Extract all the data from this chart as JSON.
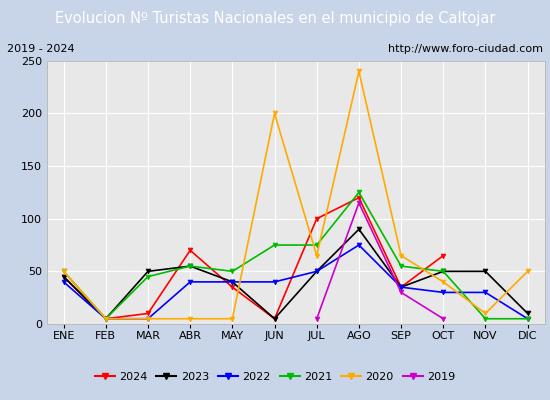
{
  "title": "Evolucion Nº Turistas Nacionales en el municipio de Caltojar",
  "subtitle_left": "2019 - 2024",
  "subtitle_right": "http://www.foro-ciudad.com",
  "months": [
    "ENE",
    "FEB",
    "MAR",
    "ABR",
    "MAY",
    "JUN",
    "JUL",
    "AGO",
    "SEP",
    "OCT",
    "NOV",
    "DIC"
  ],
  "ylim": [
    0,
    250
  ],
  "yticks": [
    0,
    50,
    100,
    150,
    200,
    250
  ],
  "series": {
    "2024": {
      "color": "#ff0000",
      "data": [
        45,
        5,
        10,
        70,
        35,
        5,
        100,
        120,
        35,
        65,
        null,
        null
      ]
    },
    "2023": {
      "color": "#000000",
      "data": [
        45,
        5,
        50,
        55,
        40,
        5,
        50,
        90,
        35,
        50,
        50,
        10
      ]
    },
    "2022": {
      "color": "#0000ff",
      "data": [
        40,
        5,
        5,
        40,
        40,
        40,
        50,
        75,
        35,
        30,
        30,
        5
      ]
    },
    "2021": {
      "color": "#00bb00",
      "data": [
        50,
        5,
        45,
        55,
        50,
        75,
        75,
        125,
        55,
        50,
        5,
        5
      ]
    },
    "2020": {
      "color": "#ffaa00",
      "data": [
        50,
        5,
        5,
        5,
        5,
        200,
        65,
        240,
        65,
        40,
        10,
        50
      ]
    },
    "2019": {
      "color": "#cc00cc",
      "data": [
        null,
        null,
        null,
        null,
        null,
        null,
        5,
        115,
        30,
        5,
        null,
        null
      ]
    }
  },
  "title_bg_color": "#4472c4",
  "title_text_color": "#ffffff",
  "plot_bg_color": "#e8e8e8",
  "grid_color": "#ffffff",
  "outer_bg_color": "#c8d4e8",
  "subtitle_box_color": "#f0f0f0",
  "legend_order": [
    "2024",
    "2023",
    "2022",
    "2021",
    "2020",
    "2019"
  ],
  "title_fontsize": 10.5,
  "tick_fontsize": 8,
  "legend_fontsize": 8
}
